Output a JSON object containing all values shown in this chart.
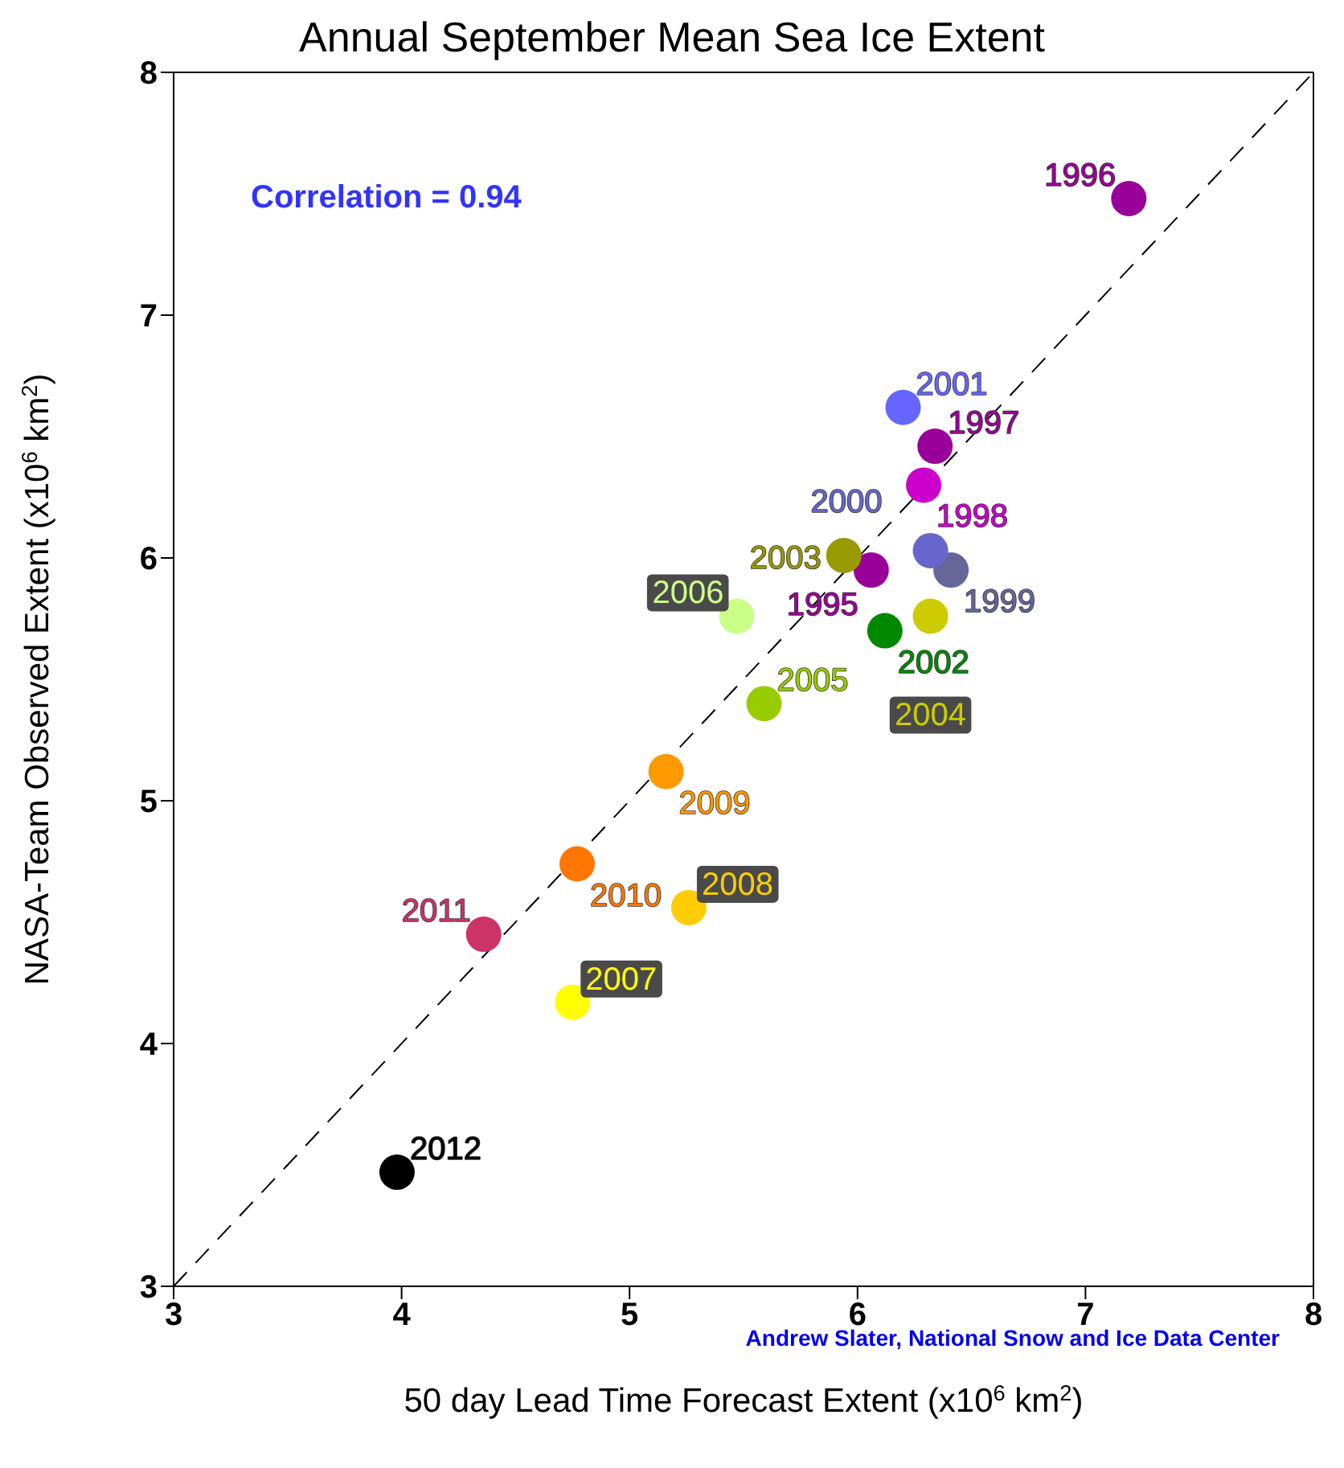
{
  "chart_data": {
    "type": "scatter",
    "title": "Annual September Mean Sea Ice Extent",
    "xlabel": "50 day Lead Time Forecast Extent (x10$^{6}$ km$^{2}$)",
    "ylabel": "NASA-Team Observed Extent (x10$^{6}$ km$^{2}$)",
    "xlim": [
      3,
      8
    ],
    "xticks": [
      3,
      4,
      5,
      6,
      7,
      8
    ],
    "ylim": [
      3,
      8
    ],
    "yticks": [
      3,
      4,
      5,
      6,
      7,
      8
    ],
    "grid": false,
    "legend": false,
    "marker": "circle",
    "annotations": [
      "Correlation = 0.94",
      "Andrew Slater, National Snow and Ice Data Center"
    ],
    "series": [
      {
        "type": "line",
        "line_style": "dashed",
        "marker": "none",
        "color": "#000000",
        "x": [
          3,
          8
        ],
        "values": [
          3,
          8
        ]
      },
      {
        "name": "1995",
        "color": "#990099",
        "x": [
          6.06
        ],
        "values": [
          5.95
        ]
      },
      {
        "name": "1996",
        "color": "#990099",
        "x": [
          7.19
        ],
        "values": [
          7.48
        ]
      },
      {
        "name": "1997",
        "color": "#990099",
        "x": [
          6.34
        ],
        "values": [
          6.46
        ]
      },
      {
        "name": "1998",
        "color": "#cc00cc",
        "x": [
          6.29
        ],
        "values": [
          6.3
        ]
      },
      {
        "name": "1999",
        "color": "#666699",
        "x": [
          6.41
        ],
        "values": [
          5.95
        ]
      },
      {
        "name": "2000",
        "color": "#6666cc",
        "x": [
          6.32
        ],
        "values": [
          6.03
        ]
      },
      {
        "name": "2001",
        "color": "#6666ff",
        "x": [
          6.2
        ],
        "values": [
          6.62
        ]
      },
      {
        "name": "2002",
        "color": "#008800",
        "x": [
          6.12
        ],
        "values": [
          5.7
        ]
      },
      {
        "name": "2003",
        "color": "#999900",
        "x": [
          5.94
        ],
        "values": [
          6.01
        ]
      },
      {
        "name": "2004",
        "color": "#cccc00",
        "x": [
          6.32
        ],
        "values": [
          5.76
        ]
      },
      {
        "name": "2005",
        "color": "#99cc00",
        "x": [
          5.59
        ],
        "values": [
          5.4
        ]
      },
      {
        "name": "2006",
        "color": "#ccff88",
        "x": [
          5.47
        ],
        "values": [
          5.76
        ]
      },
      {
        "name": "2007",
        "color": "#ffff00",
        "x": [
          4.75
        ],
        "values": [
          4.17
        ]
      },
      {
        "name": "2008",
        "color": "#ffcc00",
        "x": [
          5.26
        ],
        "values": [
          4.56
        ]
      },
      {
        "name": "2009",
        "color": "#ff9900",
        "x": [
          5.16
        ],
        "values": [
          5.12
        ]
      },
      {
        "name": "2010",
        "color": "#ff7700",
        "x": [
          4.77
        ],
        "values": [
          4.74
        ]
      },
      {
        "name": "2011",
        "color": "#cc3366",
        "x": [
          4.36
        ],
        "values": [
          4.45
        ]
      },
      {
        "name": "2012",
        "color": "#000000",
        "x": [
          3.98
        ],
        "values": [
          3.47
        ]
      }
    ]
  }
}
